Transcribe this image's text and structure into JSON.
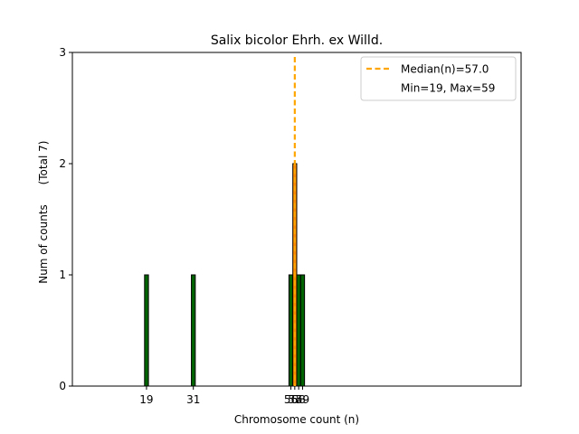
{
  "chart_data": {
    "type": "bar",
    "title": "Salix bicolor Ehrh. ex Willd.",
    "xlabel": "Chromosome count (n)",
    "ylabel": "Num of counts",
    "ylabel_total": "(Total 7)",
    "x_ticks": [
      "19",
      "31",
      "56",
      "57",
      "58",
      "59"
    ],
    "y_ticks": [
      "0",
      "1",
      "2",
      "3"
    ],
    "xlim": [
      0,
      115
    ],
    "ylim": [
      0,
      3
    ],
    "bars": [
      {
        "x": 19,
        "value": 1,
        "color": "#006400"
      },
      {
        "x": 31,
        "value": 1,
        "color": "#006400"
      },
      {
        "x": 56,
        "value": 1,
        "color": "#006400"
      },
      {
        "x": 57,
        "value": 2,
        "color": "#ff8c00"
      },
      {
        "x": 58,
        "value": 1,
        "color": "#006400"
      },
      {
        "x": 59,
        "value": 1,
        "color": "#006400"
      }
    ],
    "bar_width": 1,
    "median": {
      "x": 57.0,
      "color": "#ffa500",
      "label": "Median(n)=57.0"
    },
    "legend": {
      "placement": "top-right",
      "entries": [
        "Median(n)=57.0",
        "Min=19, Max=59"
      ]
    }
  }
}
